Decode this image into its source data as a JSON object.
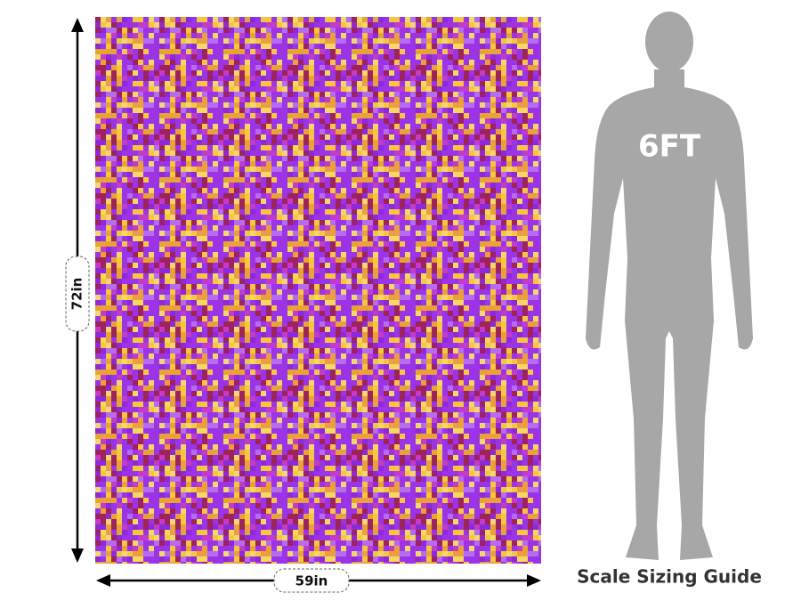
{
  "dimensions": {
    "height": "72in",
    "width": "59in"
  },
  "figure": {
    "label": "6FT"
  },
  "caption": "Scale Sizing Guide"
}
